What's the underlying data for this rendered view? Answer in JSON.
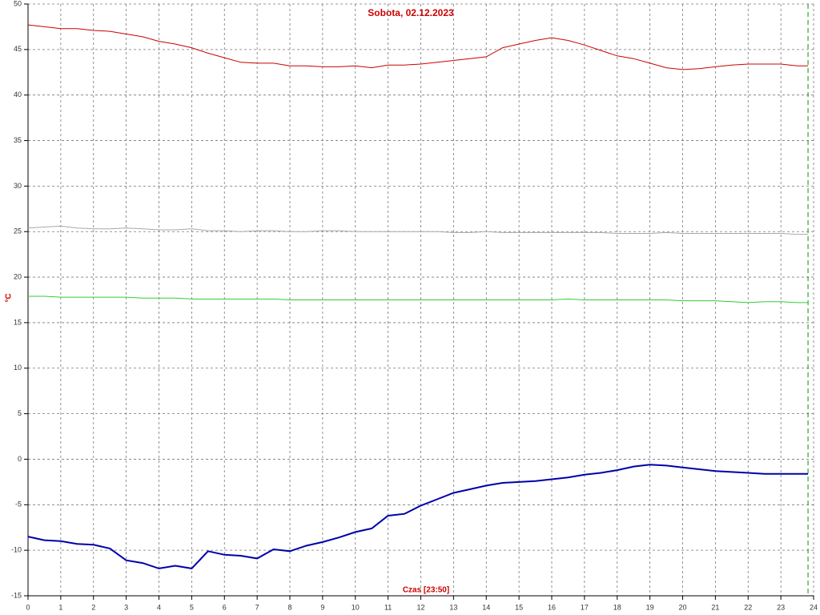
{
  "chart_data": {
    "type": "line",
    "title": "Sobota, 02.12.2023",
    "xlabel": "Czas [23:50]",
    "ylabel": "°C",
    "x": [
      0,
      0.5,
      1,
      1.5,
      2,
      2.5,
      3,
      3.5,
      4,
      4.5,
      5,
      5.5,
      6,
      6.5,
      7,
      7.5,
      8,
      8.5,
      9,
      9.5,
      10,
      10.5,
      11,
      11.5,
      12,
      12.5,
      13,
      13.5,
      14,
      14.5,
      15,
      15.5,
      16,
      16.5,
      17,
      17.5,
      18,
      18.5,
      19,
      19.5,
      20,
      20.5,
      21,
      21.5,
      22,
      22.5,
      23,
      23.5,
      23.83
    ],
    "series": [
      {
        "color": "#cc0000",
        "values": [
          47.7,
          47.5,
          47.3,
          47.3,
          47.1,
          47.0,
          46.7,
          46.4,
          45.9,
          45.6,
          45.2,
          44.6,
          44.1,
          43.6,
          43.5,
          43.5,
          43.2,
          43.2,
          43.1,
          43.1,
          43.2,
          43.0,
          43.3,
          43.3,
          43.4,
          43.6,
          43.8,
          44.0,
          44.2,
          45.2,
          45.6,
          46.0,
          46.3,
          46.0,
          45.5,
          44.9,
          44.3,
          44.0,
          43.5,
          43.0,
          42.8,
          42.9,
          43.1,
          43.3,
          43.4,
          43.4,
          43.4,
          43.2,
          43.2
        ]
      },
      {
        "color": "#a8a8a8",
        "values": [
          25.4,
          25.5,
          25.6,
          25.4,
          25.3,
          25.3,
          25.4,
          25.3,
          25.2,
          25.2,
          25.3,
          25.1,
          25.1,
          25.0,
          25.1,
          25.1,
          25.0,
          25.0,
          25.1,
          25.1,
          25.0,
          25.0,
          25.0,
          25.0,
          25.0,
          25.0,
          24.9,
          24.9,
          25.0,
          24.9,
          24.9,
          24.9,
          24.9,
          24.9,
          24.9,
          24.9,
          24.8,
          24.8,
          24.8,
          24.9,
          24.8,
          24.8,
          24.8,
          24.8,
          24.8,
          24.8,
          24.8,
          24.7,
          24.7
        ]
      },
      {
        "color": "#33cc33",
        "values": [
          17.9,
          17.9,
          17.8,
          17.8,
          17.8,
          17.8,
          17.8,
          17.7,
          17.7,
          17.7,
          17.6,
          17.6,
          17.6,
          17.6,
          17.6,
          17.6,
          17.5,
          17.5,
          17.5,
          17.5,
          17.5,
          17.5,
          17.5,
          17.5,
          17.5,
          17.5,
          17.5,
          17.5,
          17.5,
          17.5,
          17.5,
          17.5,
          17.5,
          17.6,
          17.5,
          17.5,
          17.5,
          17.5,
          17.5,
          17.5,
          17.4,
          17.4,
          17.4,
          17.3,
          17.2,
          17.3,
          17.3,
          17.2,
          17.2
        ]
      },
      {
        "color": "#0000aa",
        "values": [
          -8.5,
          -8.9,
          -9.0,
          -9.3,
          -9.4,
          -9.8,
          -11.1,
          -11.4,
          -12.0,
          -11.7,
          -12.0,
          -10.1,
          -10.5,
          -10.6,
          -10.9,
          -9.9,
          -10.1,
          -9.5,
          -9.1,
          -8.6,
          -8.0,
          -7.6,
          -6.2,
          -6.0,
          -5.1,
          -4.4,
          -3.7,
          -3.3,
          -2.9,
          -2.6,
          -2.5,
          -2.4,
          -2.2,
          -2.0,
          -1.7,
          -1.5,
          -1.2,
          -0.8,
          -0.6,
          -0.7,
          -0.9,
          -1.1,
          -1.3,
          -1.4,
          -1.5,
          -1.6,
          -1.6,
          -1.6,
          -1.6
        ]
      }
    ],
    "marker_x": 23.83,
    "marker_color": "#009900",
    "xlim": [
      0,
      24
    ],
    "xticks": [
      0,
      1,
      2,
      3,
      4,
      5,
      6,
      7,
      8,
      9,
      10,
      11,
      12,
      13,
      14,
      15,
      16,
      17,
      18,
      19,
      20,
      21,
      22,
      23,
      24
    ],
    "ylim": [
      -15,
      50
    ],
    "yticks": [
      -15,
      -10,
      -5,
      0,
      5,
      10,
      15,
      20,
      25,
      30,
      35,
      40,
      45,
      50
    ],
    "grid": true
  }
}
